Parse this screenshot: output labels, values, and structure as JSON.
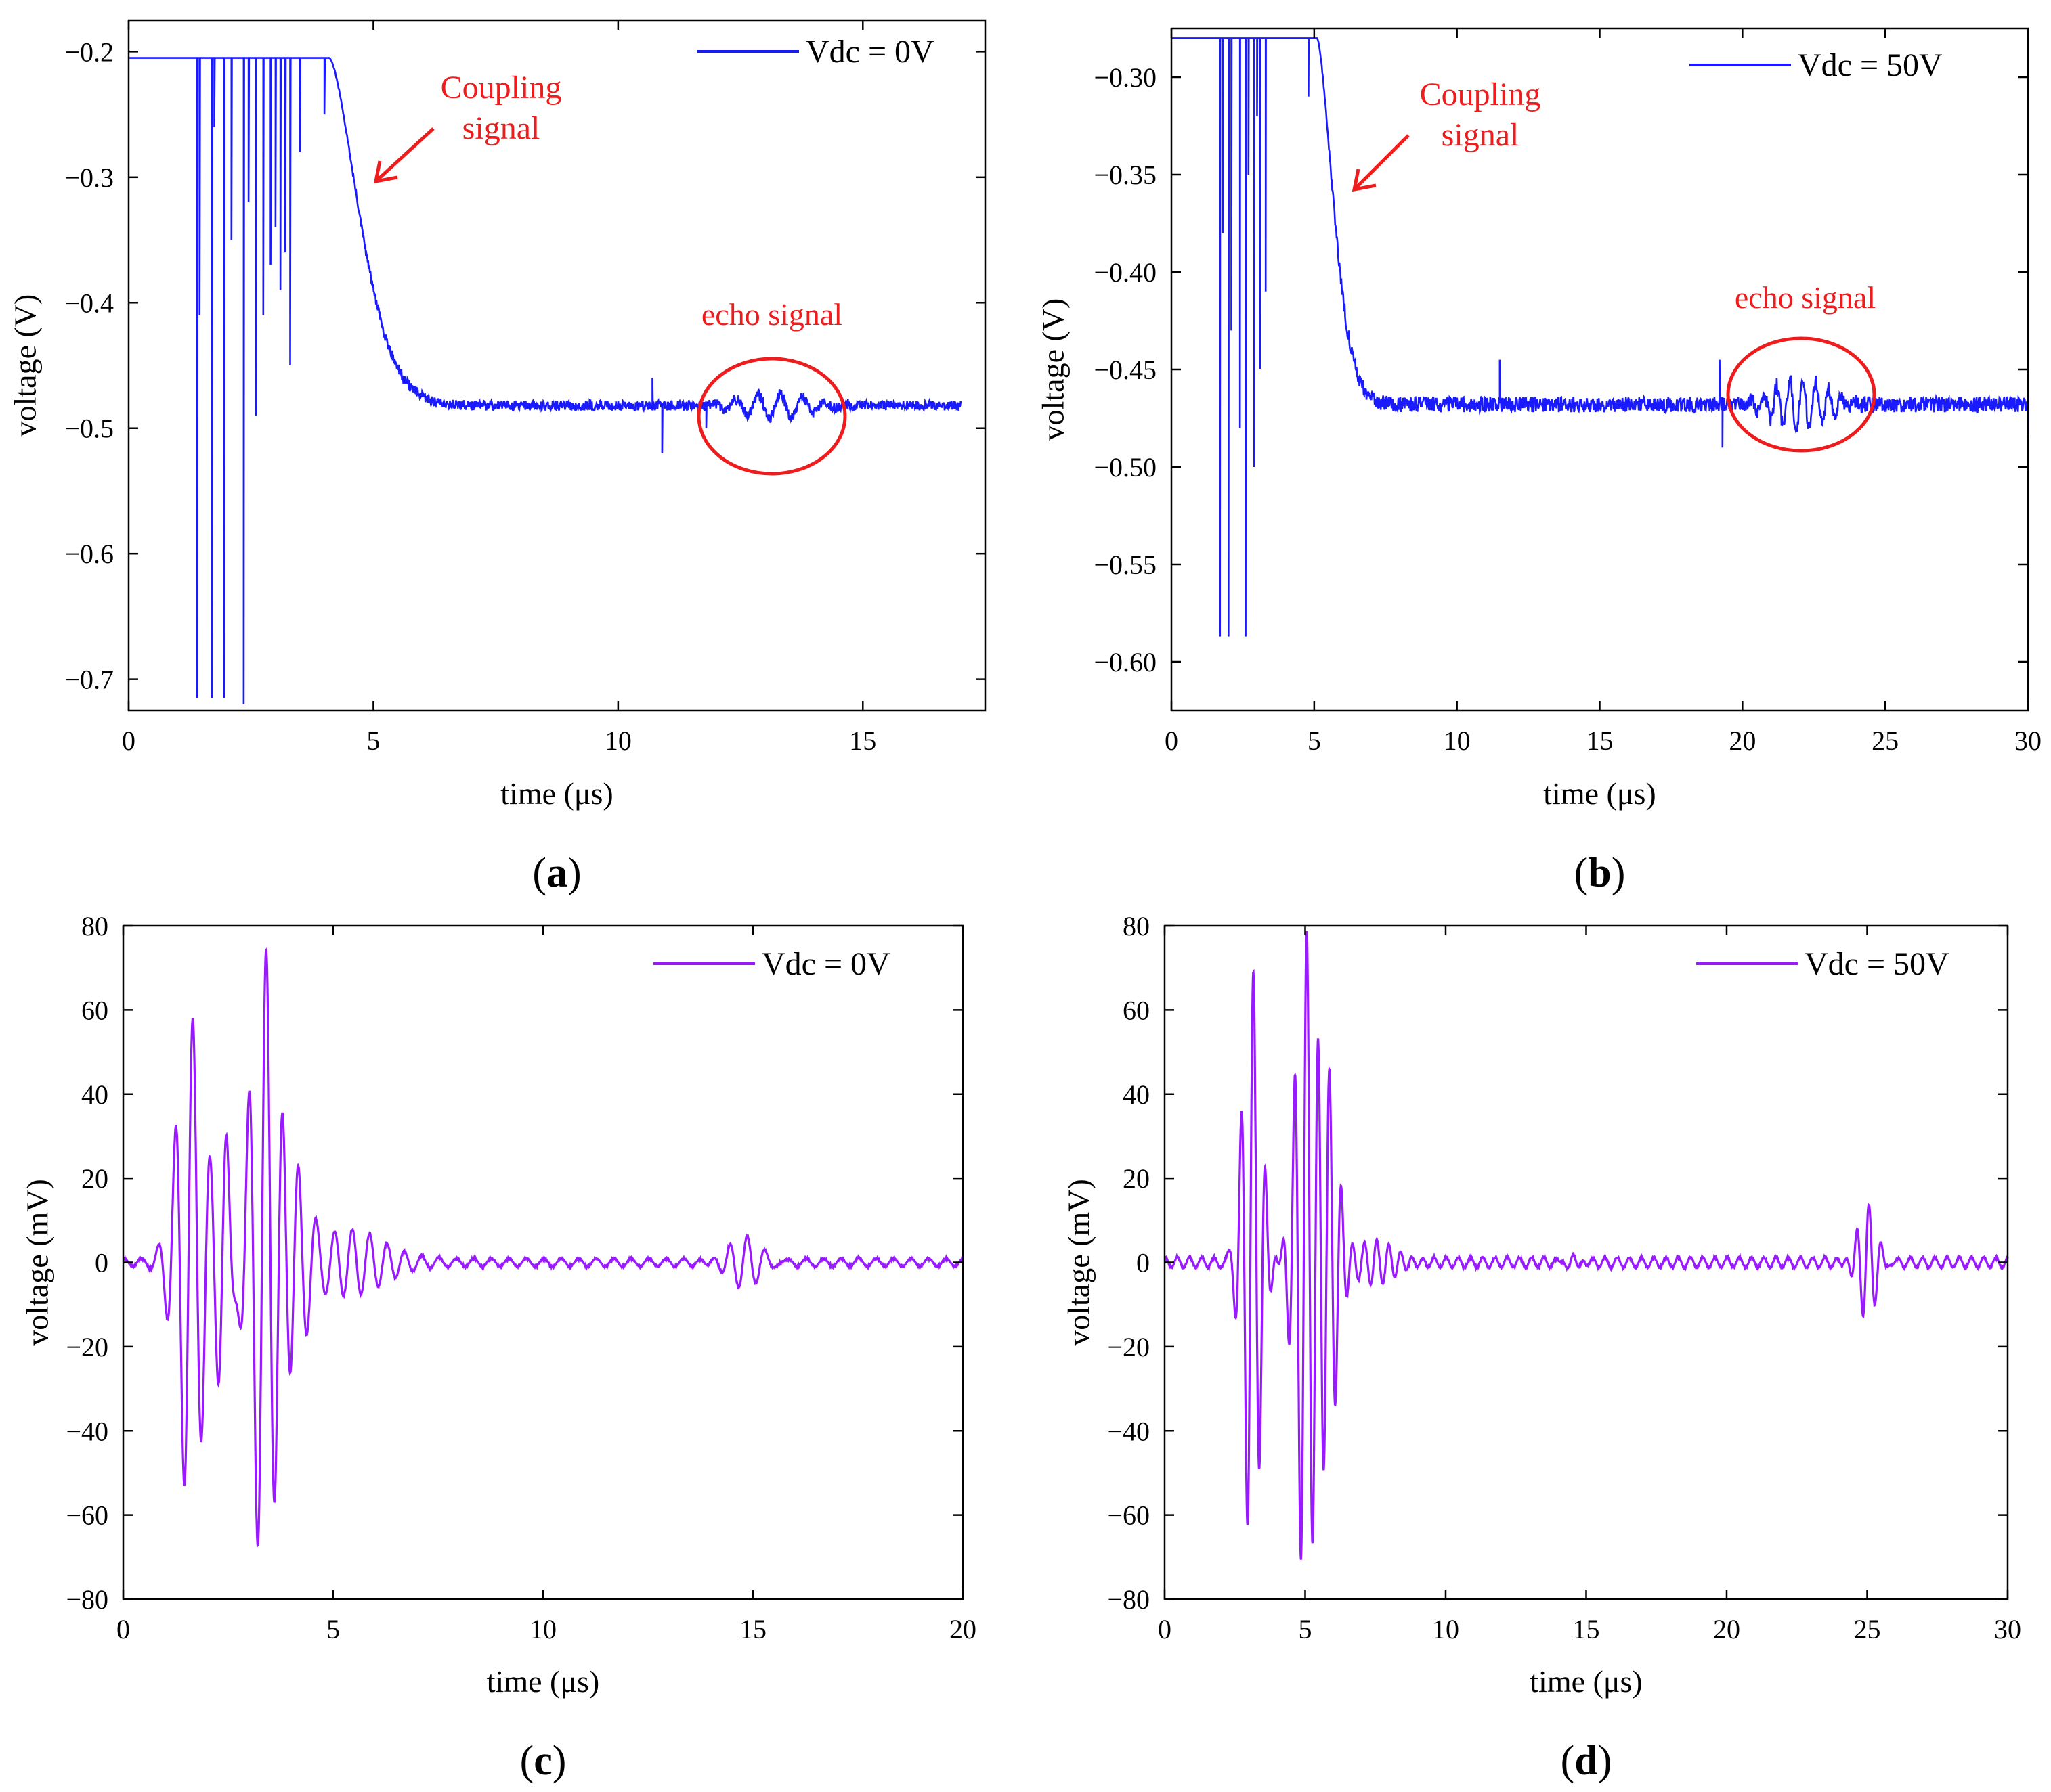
{
  "figure": {
    "panels": [
      {
        "id": "a",
        "caption_letter": "a",
        "title": "",
        "xlabel": "time (μs)",
        "ylabel": "voltage (V)",
        "xlim": [
          0,
          17.5
        ],
        "ylim": [
          -0.725,
          -0.175
        ],
        "xticks": [
          0,
          5,
          10,
          15
        ],
        "xticklabels": [
          "0",
          "5",
          "10",
          "15"
        ],
        "yticks": [
          -0.2,
          -0.3,
          -0.4,
          -0.5,
          -0.6,
          -0.7
        ],
        "yticklabels": [
          "−0.2",
          "−0.3",
          "−0.4",
          "−0.5",
          "−0.6",
          "−0.7"
        ],
        "legend_label": "Vdc = 0V",
        "legend_position": "top-right",
        "color": "#1a1aff",
        "annotations": [
          {
            "kind": "arrow",
            "lines": [
              "Coupling",
              "signal"
            ],
            "color": "#ee1c1c"
          },
          {
            "kind": "circle",
            "lines": [
              "echo signal"
            ],
            "color": "#ee1c1c"
          }
        ]
      },
      {
        "id": "b",
        "caption_letter": "b",
        "title": "",
        "xlabel": "time (μs)",
        "ylabel": "voltage (V)",
        "xlim": [
          0,
          30
        ],
        "ylim": [
          -0.625,
          -0.275
        ],
        "xticks": [
          0,
          5,
          10,
          15,
          20,
          25,
          30
        ],
        "xticklabels": [
          "0",
          "5",
          "10",
          "15",
          "20",
          "25",
          "30"
        ],
        "yticks": [
          -0.3,
          -0.35,
          -0.4,
          -0.45,
          -0.5,
          -0.55,
          -0.6
        ],
        "yticklabels": [
          "−0.30",
          "−0.35",
          "−0.40",
          "−0.45",
          "−0.50",
          "−0.55",
          "−0.60"
        ],
        "legend_label": "Vdc = 50V",
        "legend_position": "top-right",
        "color": "#1a1aff",
        "annotations": [
          {
            "kind": "arrow",
            "lines": [
              "Coupling",
              "signal"
            ],
            "color": "#ee1c1c"
          },
          {
            "kind": "circle",
            "lines": [
              "echo signal"
            ],
            "color": "#ee1c1c"
          }
        ]
      },
      {
        "id": "c",
        "caption_letter": "c",
        "title": "",
        "xlabel": "time (μs)",
        "ylabel": "voltage (mV)",
        "xlim": [
          0,
          20
        ],
        "ylim": [
          -80,
          80
        ],
        "xticks": [
          0,
          5,
          10,
          15,
          20
        ],
        "xticklabels": [
          "0",
          "5",
          "10",
          "15",
          "20"
        ],
        "yticks": [
          80,
          60,
          40,
          20,
          0,
          -20,
          -40,
          -60,
          -80
        ],
        "yticklabels": [
          "80",
          "60",
          "40",
          "20",
          "0",
          "−20",
          "−40",
          "−60",
          "−80"
        ],
        "legend_label": "Vdc = 0V",
        "legend_position": "top-right",
        "color": "#9a1aff",
        "annotations": []
      },
      {
        "id": "d",
        "caption_letter": "d",
        "title": "",
        "xlabel": "time (μs)",
        "ylabel": "voltage (mV)",
        "xlim": [
          0,
          30
        ],
        "ylim": [
          -80,
          80
        ],
        "xticks": [
          0,
          5,
          10,
          15,
          20,
          25,
          30
        ],
        "xticklabels": [
          "0",
          "5",
          "10",
          "15",
          "20",
          "25",
          "30"
        ],
        "yticks": [
          80,
          60,
          40,
          20,
          0,
          -20,
          -40,
          -60,
          -80
        ],
        "yticklabels": [
          "80",
          "60",
          "40",
          "20",
          "0",
          "−20",
          "−40",
          "−60",
          "−80"
        ],
        "legend_label": "Vdc = 50V",
        "legend_position": "top-right",
        "color": "#9a1aff",
        "annotations": []
      }
    ]
  },
  "chart_data": [
    {
      "type": "line",
      "panel": "a",
      "title": "",
      "xlabel": "time (μs)",
      "ylabel": "voltage (V)",
      "xlim": [
        0,
        17.5
      ],
      "ylim": [
        -0.725,
        -0.175
      ],
      "series": [
        {
          "name": "Vdc = 0V",
          "color": "#1a1aff",
          "baseline": -0.205,
          "decay_start": 4.1,
          "settle_value": -0.482,
          "decay_tau": 0.85,
          "noise_amplitude": 0.004,
          "spikes": [
            [
              1.4,
              -0.715
            ],
            [
              1.45,
              -0.41
            ],
            [
              1.7,
              -0.715
            ],
            [
              1.75,
              -0.26
            ],
            [
              1.95,
              -0.715
            ],
            [
              2.1,
              -0.35
            ],
            [
              2.35,
              -0.72
            ],
            [
              2.45,
              -0.32
            ],
            [
              2.6,
              -0.49
            ],
            [
              2.75,
              -0.41
            ],
            [
              2.9,
              -0.37
            ],
            [
              3.0,
              -0.34
            ],
            [
              3.1,
              -0.39
            ],
            [
              3.2,
              -0.36
            ],
            [
              3.3,
              -0.45
            ],
            [
              3.5,
              -0.28
            ],
            [
              4.0,
              -0.25
            ],
            [
              10.7,
              -0.46
            ],
            [
              10.9,
              -0.52
            ],
            [
              11.8,
              -0.5
            ]
          ],
          "echo": {
            "center": 13.2,
            "width": 1.0,
            "amplitude": 0.01
          }
        }
      ]
    },
    {
      "type": "line",
      "panel": "b",
      "title": "",
      "xlabel": "time (μs)",
      "ylabel": "voltage (V)",
      "xlim": [
        0,
        30
      ],
      "ylim": [
        -0.625,
        -0.275
      ],
      "series": [
        {
          "name": "Vdc = 50V",
          "color": "#1a1aff",
          "baseline": -0.28,
          "decay_start": 5.1,
          "settle_value": -0.468,
          "decay_tau": 0.8,
          "noise_amplitude": 0.004,
          "spikes": [
            [
              1.7,
              -0.587
            ],
            [
              1.8,
              -0.38
            ],
            [
              2.0,
              -0.587
            ],
            [
              2.1,
              -0.43
            ],
            [
              2.4,
              -0.48
            ],
            [
              2.6,
              -0.587
            ],
            [
              2.7,
              -0.35
            ],
            [
              2.9,
              -0.5
            ],
            [
              3.0,
              -0.32
            ],
            [
              3.1,
              -0.45
            ],
            [
              3.3,
              -0.41
            ],
            [
              4.8,
              -0.31
            ],
            [
              11.5,
              -0.445
            ],
            [
              19.2,
              -0.445
            ],
            [
              19.3,
              -0.49
            ],
            [
              30.0,
              -0.483
            ]
          ],
          "echo": {
            "center": 22.0,
            "width": 1.3,
            "amplitude": 0.014
          }
        }
      ]
    },
    {
      "type": "line",
      "panel": "c",
      "title": "",
      "xlabel": "time (μs)",
      "ylabel": "voltage (mV)",
      "xlim": [
        0,
        20
      ],
      "ylim": [
        -80,
        80
      ],
      "series": [
        {
          "name": "Vdc = 0V",
          "color": "#9a1aff",
          "carrier_freq_mhz": 2.4,
          "bursts": [
            {
              "center": 1.6,
              "width": 0.45,
              "amplitude": 58
            },
            {
              "center": 2.4,
              "width": 0.25,
              "amplitude": 30
            },
            {
              "center": 3.35,
              "width": 0.45,
              "amplitude": 74
            },
            {
              "center": 4.1,
              "width": 0.45,
              "amplitude": 20
            },
            {
              "center": 5.4,
              "width": 1.1,
              "amplitude": 7
            },
            {
              "center": 14.8,
              "width": 0.6,
              "amplitude": 7
            }
          ],
          "noise_amplitude": 1.2
        }
      ]
    },
    {
      "type": "line",
      "panel": "d",
      "title": "",
      "xlabel": "time (μs)",
      "ylabel": "voltage (mV)",
      "xlim": [
        0,
        30
      ],
      "ylim": [
        -80,
        80
      ],
      "series": [
        {
          "name": "Vdc = 50V",
          "color": "#9a1aff",
          "carrier_freq_mhz": 2.3,
          "bursts": [
            {
              "center": 3.1,
              "width": 0.45,
              "amplitude": 70
            },
            {
              "center": 5.0,
              "width": 0.5,
              "amplitude": 78
            },
            {
              "center": 5.8,
              "width": 0.5,
              "amplitude": 45
            },
            {
              "center": 7.5,
              "width": 1.1,
              "amplitude": 6
            },
            {
              "center": 25.0,
              "width": 0.5,
              "amplitude": 15
            },
            {
              "center": 14.5,
              "width": 0.4,
              "amplitude": 3
            }
          ],
          "noise_amplitude": 1.5
        }
      ]
    }
  ]
}
